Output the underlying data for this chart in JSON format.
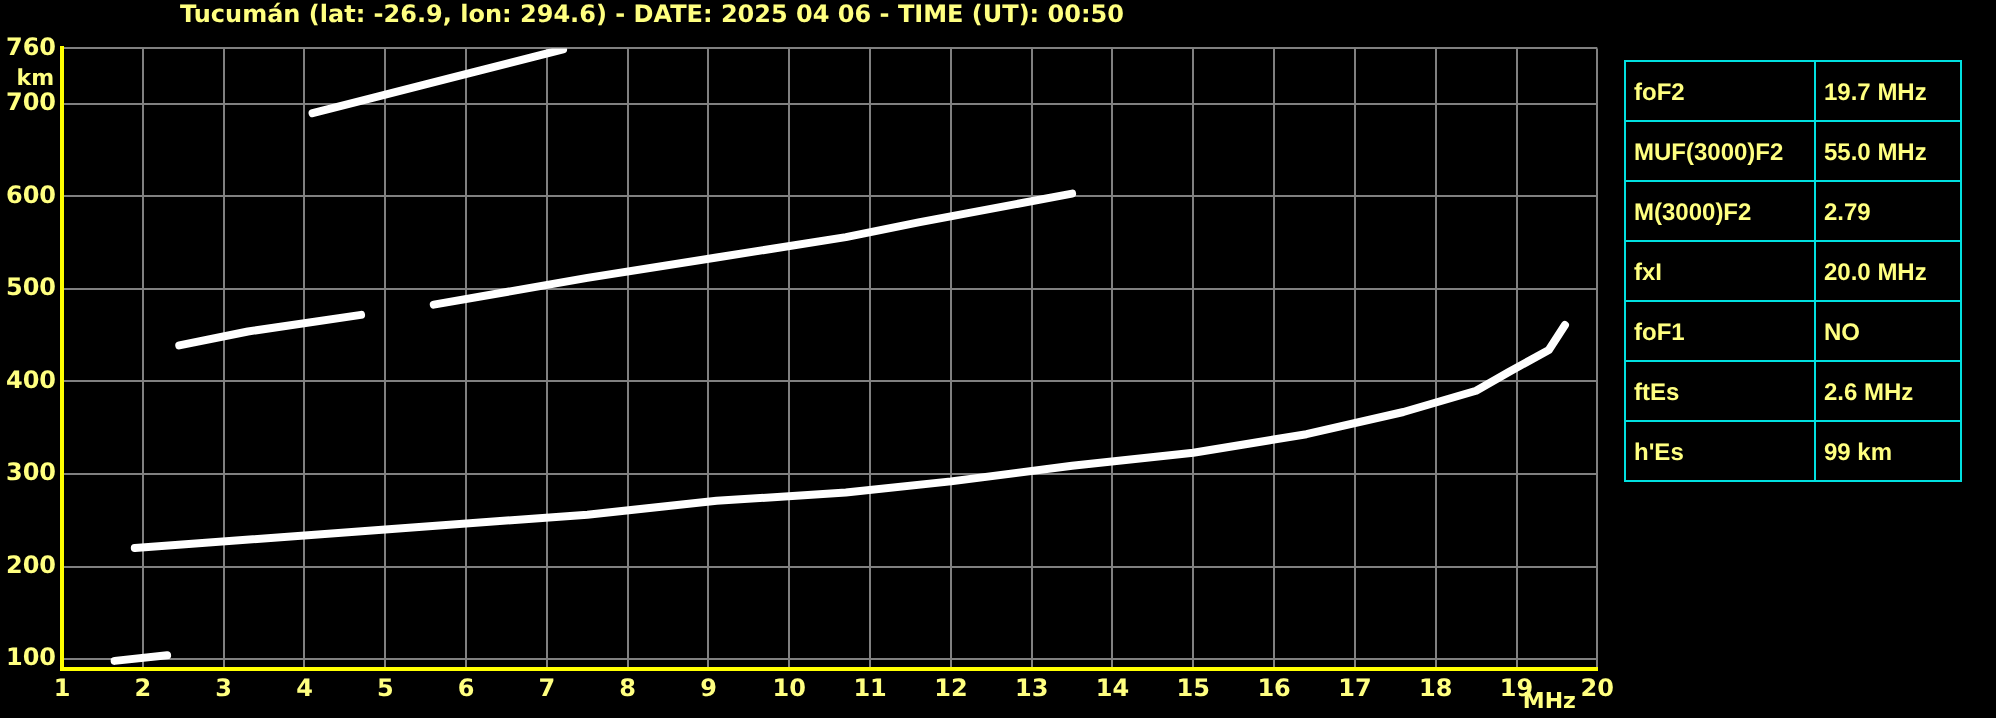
{
  "chart_data": {
    "type": "line",
    "title": "Tucumán (lat: -26.9, lon: 294.6) - DATE: 2025 04 06 - TIME (UT): 00:50",
    "xlabel": "MHz",
    "ylabel": "km",
    "xlim": [
      1,
      20
    ],
    "xticks": [
      1,
      2,
      3,
      4,
      5,
      6,
      7,
      8,
      9,
      10,
      11,
      12,
      13,
      14,
      15,
      16,
      17,
      18,
      19,
      20
    ],
    "ylim": [
      89,
      760
    ],
    "yticks": [
      100,
      200,
      300,
      400,
      500,
      600,
      700,
      760
    ],
    "grid": true,
    "legend": false,
    "marker": "none",
    "line_style": "solid",
    "series": [
      {
        "color": "#ffffff",
        "x": [
          1.9,
          5.0,
          7.5,
          9.1,
          10.7,
          12.0,
          13.5,
          15.0,
          16.4,
          17.6,
          18.5,
          18.9,
          19.4,
          19.6
        ],
        "values": [
          220,
          240,
          256,
          271,
          280,
          292,
          309,
          323,
          343,
          367,
          390,
          410,
          434,
          461
        ]
      },
      {
        "color": "#ffffff",
        "x": [
          2.45,
          3.3,
          4.7,
          5.2,
          5.6,
          7.5,
          9.1,
          10.7,
          11.6,
          13.5
        ],
        "values": [
          439,
          454,
          472,
          null,
          483,
          512,
          534,
          556,
          572,
          603
        ]
      },
      {
        "color": "#ffffff",
        "x": [
          4.1,
          4.6,
          5.8,
          7.2
        ],
        "values": [
          690,
          701,
          728,
          759
        ]
      },
      {
        "color": "#ffffff",
        "x": [
          1.65,
          2.3
        ],
        "values": [
          98,
          104
        ]
      }
    ],
    "annotations": [
      "foF2",
      "19.7 MHz",
      "MUF(3000)F2",
      "55.0 MHz",
      "M(3000)F2",
      "2.79",
      "fxI",
      "20.0 MHz",
      "foF1",
      "NO",
      "ftEs",
      "2.6 MHz",
      "h'Es",
      "99 km"
    ]
  }
}
